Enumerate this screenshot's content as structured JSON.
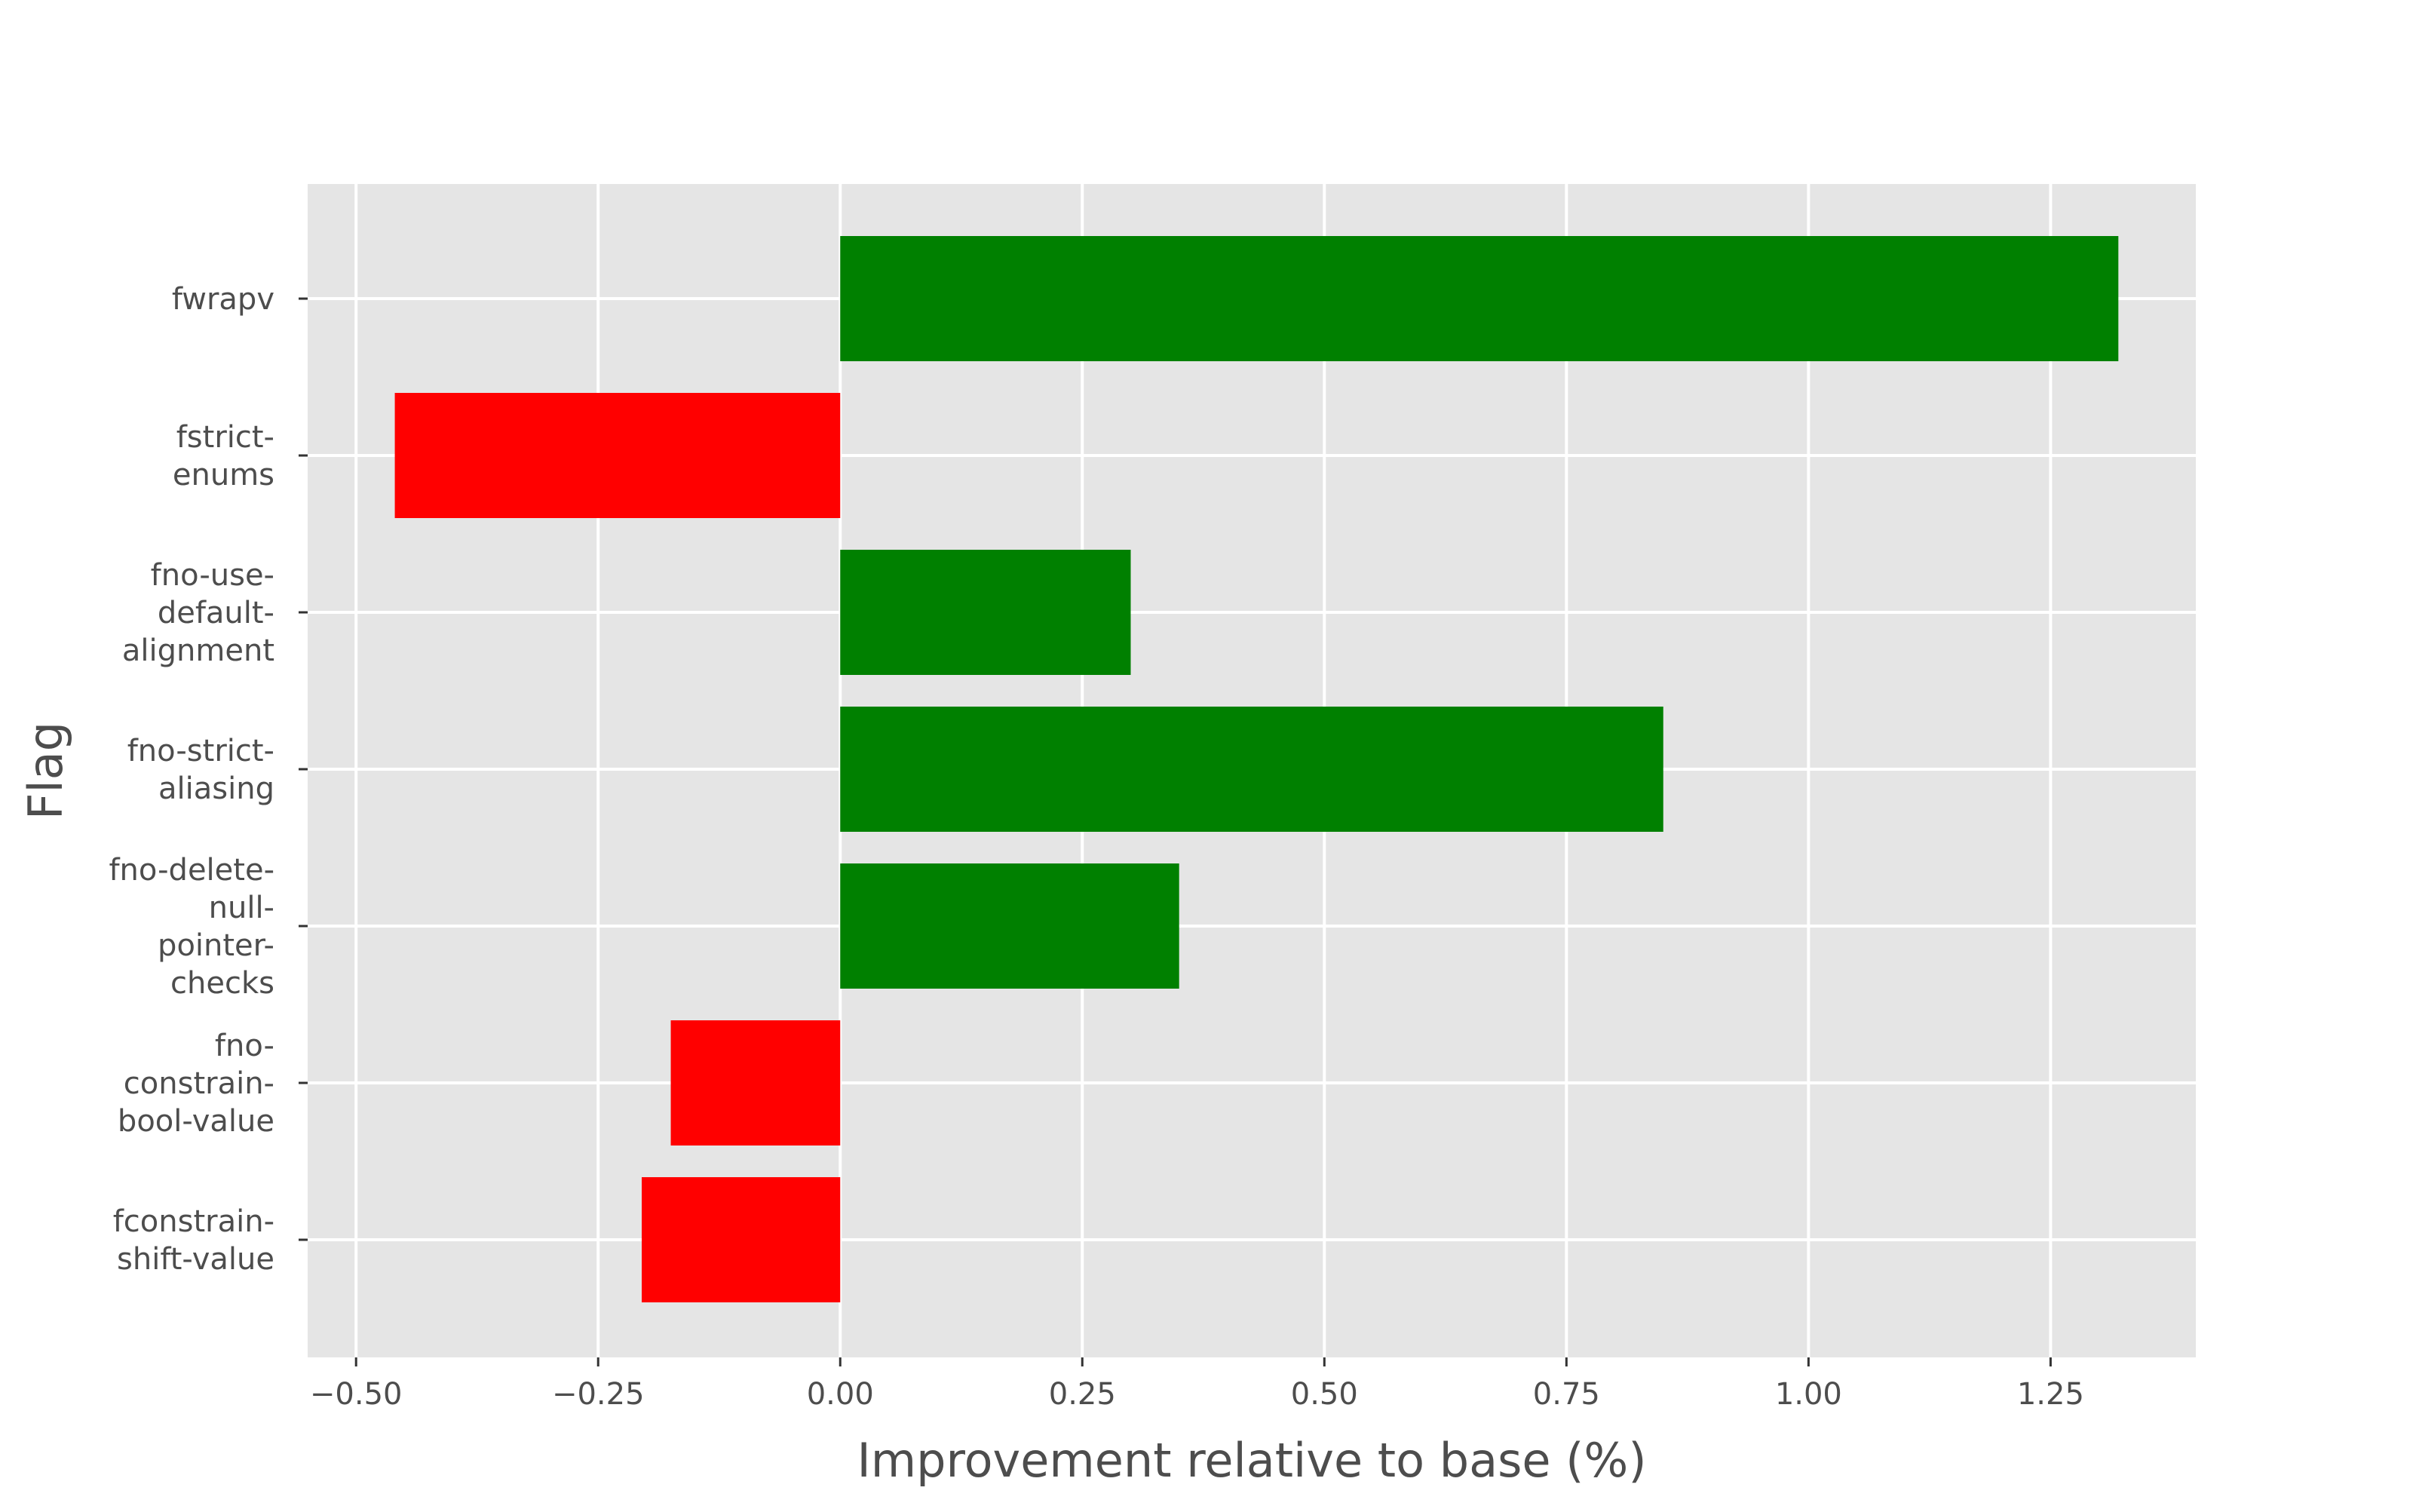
{
  "chart_data": {
    "type": "bar",
    "orientation": "horizontal",
    "title": "",
    "xlabel": "Improvement relative to base (%)",
    "ylabel": "Flag",
    "xlim": [
      -0.55,
      1.4
    ],
    "xticks": [
      -0.5,
      -0.25,
      0.0,
      0.25,
      0.5,
      0.75,
      1.0,
      1.25
    ],
    "xtick_labels": [
      "−0.50",
      "−0.25",
      "0.00",
      "0.25",
      "0.50",
      "0.75",
      "1.00",
      "1.25"
    ],
    "grid": true,
    "style": "ggplot",
    "categories": [
      {
        "name": "fwrapv",
        "lines": [
          "fwrapv"
        ],
        "value": 1.32
      },
      {
        "name": "fstrict-enums",
        "lines": [
          "fstrict-",
          "enums"
        ],
        "value": -0.46
      },
      {
        "name": "fno-use-default-alignment",
        "lines": [
          "fno-use-",
          "default-",
          "alignment"
        ],
        "value": 0.3
      },
      {
        "name": "fno-strict-aliasing",
        "lines": [
          "fno-strict-",
          "aliasing"
        ],
        "value": 0.85
      },
      {
        "name": "fno-delete-null-pointer-checks",
        "lines": [
          "fno-delete-",
          "null-",
          "pointer-",
          "checks"
        ],
        "value": 0.35
      },
      {
        "name": "fno-constrain-bool-value",
        "lines": [
          "fno-",
          "constrain-",
          "bool-value"
        ],
        "value": -0.175
      },
      {
        "name": "fconstrain-shift-value",
        "lines": [
          "fconstrain-",
          "shift-value"
        ],
        "value": -0.205
      }
    ],
    "colors": {
      "positive": "#008000",
      "negative": "#ff0000",
      "panel": "#e5e5e5",
      "grid": "#ffffff",
      "text": "#4d4d4d"
    }
  }
}
